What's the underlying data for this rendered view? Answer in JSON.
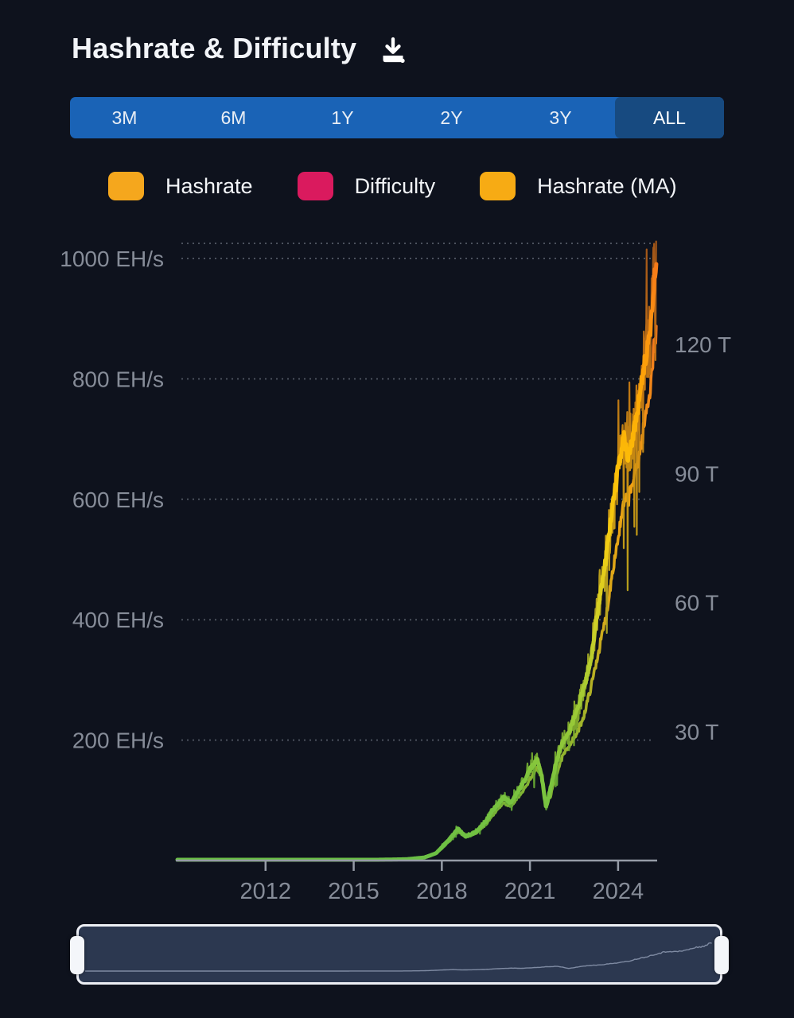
{
  "header": {
    "title": "Hashrate & Difficulty",
    "download_icon": "download-icon"
  },
  "time_ranges": {
    "options": [
      "3M",
      "6M",
      "1Y",
      "2Y",
      "3Y",
      "ALL"
    ],
    "active": "ALL",
    "inactive_color": "#1a63b6",
    "active_color": "#174a80"
  },
  "legend": {
    "items": [
      {
        "label": "Hashrate",
        "color": "#f5a71d",
        "icon": "hashrate-swatch"
      },
      {
        "label": "Difficulty",
        "color": "#da1a5e",
        "icon": "difficulty-swatch"
      },
      {
        "label": "Hashrate (MA)",
        "color": "#f7ab14",
        "icon": "hashrate-ma-swatch"
      }
    ]
  },
  "chart_data": {
    "type": "line",
    "title": "Hashrate & Difficulty",
    "left_axis": {
      "unit": "EH/s",
      "ticks": [
        1000,
        800,
        600,
        400,
        200
      ],
      "range": [
        0,
        1030
      ],
      "label_suffix": " EH/s"
    },
    "right_axis": {
      "unit": "T",
      "ticks": [
        120,
        90,
        60,
        30
      ],
      "range": [
        0,
        126
      ],
      "label_suffix": " T"
    },
    "x_axis": {
      "ticks": [
        2012,
        2015,
        2018,
        2021,
        2024
      ],
      "range": [
        2009.0,
        2025.33
      ]
    },
    "grid": {
      "style": "dotted",
      "color": "#4b515d",
      "top_boundary": true
    },
    "legend_position": "top",
    "series": [
      {
        "name": "Hashrate",
        "axis": "left",
        "style": "noisy",
        "gradient": [
          "#55a437",
          "#68a933",
          "#8aad2b",
          "#b0a722",
          "#c9a317",
          "#cf9212",
          "#c87d14",
          "#bd6a16",
          "#a85818"
        ]
      },
      {
        "name": "Difficulty",
        "axis": "right",
        "style": "smooth",
        "gradient": [
          "#60b03c",
          "#9ab52c",
          "#d8a91a",
          "#efa112",
          "#f2811c",
          "#f0541f"
        ]
      },
      {
        "name": "Hashrate (MA)",
        "axis": "left",
        "style": "smooth",
        "gradient": [
          "#6abf45",
          "#7dc43e",
          "#9fca35",
          "#ccd028",
          "#f0cd15",
          "#fcbf08",
          "#fda806",
          "#fc8f12",
          "#f2701d"
        ]
      }
    ],
    "anchors_comment": "[year, hashrate EH/s, difficulty T] read from chart",
    "anchors": [
      [
        2009.0,
        0.001,
        0.0
      ],
      [
        2010.0,
        0.002,
        0.0
      ],
      [
        2011.0,
        0.01,
        0.001
      ],
      [
        2012.0,
        0.02,
        0.002
      ],
      [
        2013.0,
        0.1,
        0.01
      ],
      [
        2014.0,
        0.3,
        0.04
      ],
      [
        2015.0,
        0.45,
        0.06
      ],
      [
        2016.0,
        1.5,
        0.2
      ],
      [
        2016.8,
        2.2,
        0.3
      ],
      [
        2017.4,
        5,
        0.7
      ],
      [
        2017.8,
        12,
        1.6
      ],
      [
        2018.0,
        22,
        2.8
      ],
      [
        2018.3,
        38,
        4.8
      ],
      [
        2018.55,
        53,
        6.7
      ],
      [
        2018.8,
        40,
        5.4
      ],
      [
        2019.0,
        44,
        5.9
      ],
      [
        2019.2,
        49,
        6.5
      ],
      [
        2019.5,
        65,
        8.3
      ],
      [
        2019.7,
        82,
        10.2
      ],
      [
        2019.9,
        93,
        11.9
      ],
      [
        2020.1,
        105,
        13.4
      ],
      [
        2020.35,
        95,
        12.6
      ],
      [
        2020.6,
        116,
        14.8
      ],
      [
        2020.85,
        135,
        17.0
      ],
      [
        2021.0,
        152,
        19.0
      ],
      [
        2021.25,
        168,
        21.5
      ],
      [
        2021.4,
        140,
        19.3
      ],
      [
        2021.55,
        88,
        13.5
      ],
      [
        2021.7,
        120,
        15.0
      ],
      [
        2021.9,
        165,
        20.0
      ],
      [
        2022.1,
        195,
        24.0
      ],
      [
        2022.35,
        215,
        27.0
      ],
      [
        2022.6,
        250,
        29.5
      ],
      [
        2022.85,
        290,
        34.0
      ],
      [
        2023.1,
        340,
        41.0
      ],
      [
        2023.35,
        430,
        49.0
      ],
      [
        2023.6,
        505,
        57.0
      ],
      [
        2023.8,
        585,
        67.0
      ],
      [
        2024.0,
        650,
        75.0
      ],
      [
        2024.2,
        700,
        83.0
      ],
      [
        2024.35,
        670,
        84.0
      ],
      [
        2024.5,
        700,
        88.0
      ],
      [
        2024.65,
        740,
        92.0
      ],
      [
        2024.8,
        800,
        97.0
      ],
      [
        2024.95,
        840,
        104.0
      ],
      [
        2025.1,
        880,
        110.0
      ],
      [
        2025.2,
        950,
        118.0
      ],
      [
        2025.3,
        1000,
        123.0
      ]
    ],
    "noise": {
      "raw_jitter": 0.11,
      "spike_prob": 0.035,
      "ma_jitter": 0.018
    }
  },
  "slider": {
    "handles": [
      "left",
      "right"
    ],
    "track_color": "#2c3850",
    "border_color": "#edeff5",
    "mini_line_color": "#8e9ab2"
  },
  "colors": {
    "background": "#0e121d",
    "axis_text": "#868c98",
    "axis_line": "#959ba6"
  }
}
